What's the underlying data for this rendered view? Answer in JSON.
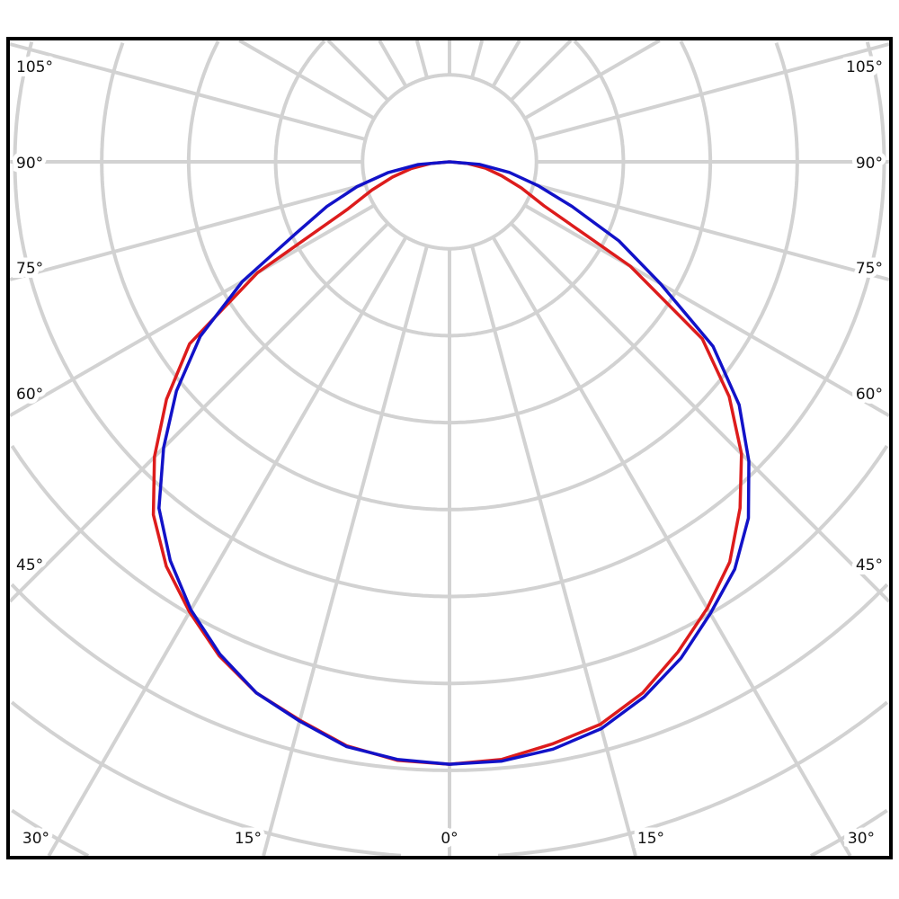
{
  "chart_data": {
    "type": "polar",
    "title": "",
    "angle_zero": "bottom",
    "angle_unit": "degrees",
    "angular_ticks": {
      "bottom": [
        "30°",
        "15°",
        "0°",
        "15°",
        "30°"
      ],
      "left": [
        "105°",
        "90°",
        "75°",
        "60°",
        "45°"
      ],
      "right": [
        "105°",
        "90°",
        "75°",
        "60°",
        "45°"
      ]
    },
    "radial_labels": "none",
    "grid": true,
    "grid_spoke_step_deg": 15,
    "angles": [
      0,
      5,
      10,
      15,
      20,
      25,
      30,
      35,
      40,
      45,
      50,
      55,
      60,
      65,
      70,
      75,
      80,
      85,
      90
    ],
    "series": [
      {
        "color": "#dd1c1c",
        "left": [
          6.93,
          6.91,
          6.82,
          6.65,
          6.5,
          6.27,
          5.98,
          5.68,
          5.3,
          4.8,
          4.25,
          3.65,
          2.55,
          1.3,
          0.95,
          0.68,
          0.45,
          0.22,
          0
        ],
        "right": [
          6.93,
          6.9,
          6.8,
          6.7,
          6.5,
          6.22,
          5.93,
          5.62,
          5.2,
          4.75,
          4.2,
          3.55,
          2.4,
          1.2,
          0.88,
          0.62,
          0.42,
          0.2,
          0
        ]
      },
      {
        "color": "#1212c8",
        "left": [
          6.93,
          6.9,
          6.83,
          6.66,
          6.5,
          6.25,
          5.95,
          5.6,
          5.2,
          4.65,
          4.1,
          3.5,
          2.75,
          1.95,
          1.5,
          1.1,
          0.72,
          0.36,
          0
        ],
        "right": [
          6.93,
          6.92,
          6.86,
          6.75,
          6.55,
          6.3,
          6.0,
          5.72,
          5.35,
          4.87,
          4.35,
          3.7,
          2.8,
          2.15,
          1.5,
          1.05,
          0.7,
          0.35,
          0
        ]
      }
    ],
    "colors": {
      "grid": "#d2d2d2",
      "frame": "#000000"
    }
  }
}
